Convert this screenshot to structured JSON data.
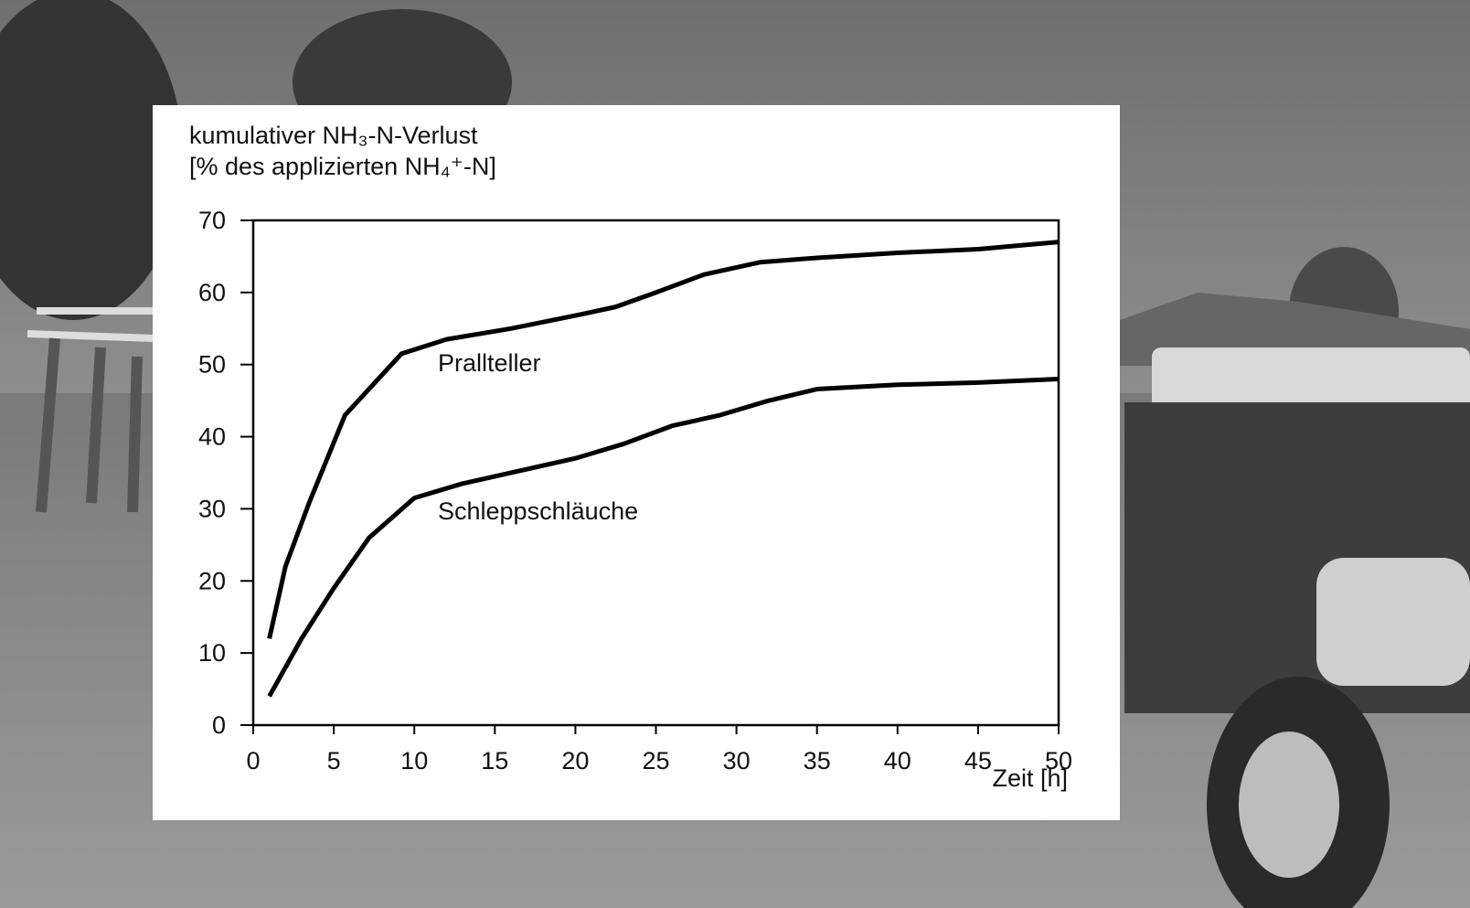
{
  "chart_data": {
    "type": "line",
    "title": [
      "kumulativer NH₃-N-Verlust",
      "[% des applizierten NH₄⁺-N]"
    ],
    "x_label": "Zeit [h]",
    "xlim": [
      0,
      50
    ],
    "xticks": [
      0,
      5,
      10,
      15,
      20,
      25,
      30,
      35,
      40,
      45,
      50
    ],
    "ylim": [
      0,
      70
    ],
    "yticks": [
      0,
      10,
      20,
      30,
      40,
      50,
      60,
      70
    ],
    "series": [
      {
        "name": "Prallteller",
        "color": "#000000",
        "x": [
          1,
          2,
          3.5,
          5.7,
          9.2,
          12,
          16,
          20,
          22.5,
          25,
          28,
          31.5,
          35,
          40,
          45,
          50
        ],
        "values": [
          12,
          22,
          31,
          43,
          51.5,
          53.5,
          55,
          56.8,
          58,
          60,
          62.5,
          64.2,
          64.8,
          65.5,
          66,
          67
        ]
      },
      {
        "name": "Schleppschläuche",
        "color": "#000000",
        "x": [
          1,
          3,
          5,
          7.2,
          10,
          13,
          17,
          20,
          23,
          26,
          29,
          32,
          35,
          40,
          45,
          50
        ],
        "values": [
          4,
          12,
          19,
          26,
          31.5,
          33.5,
          35.5,
          37,
          39,
          41.5,
          43,
          45,
          46.6,
          47.2,
          47.5,
          48
        ]
      }
    ]
  }
}
